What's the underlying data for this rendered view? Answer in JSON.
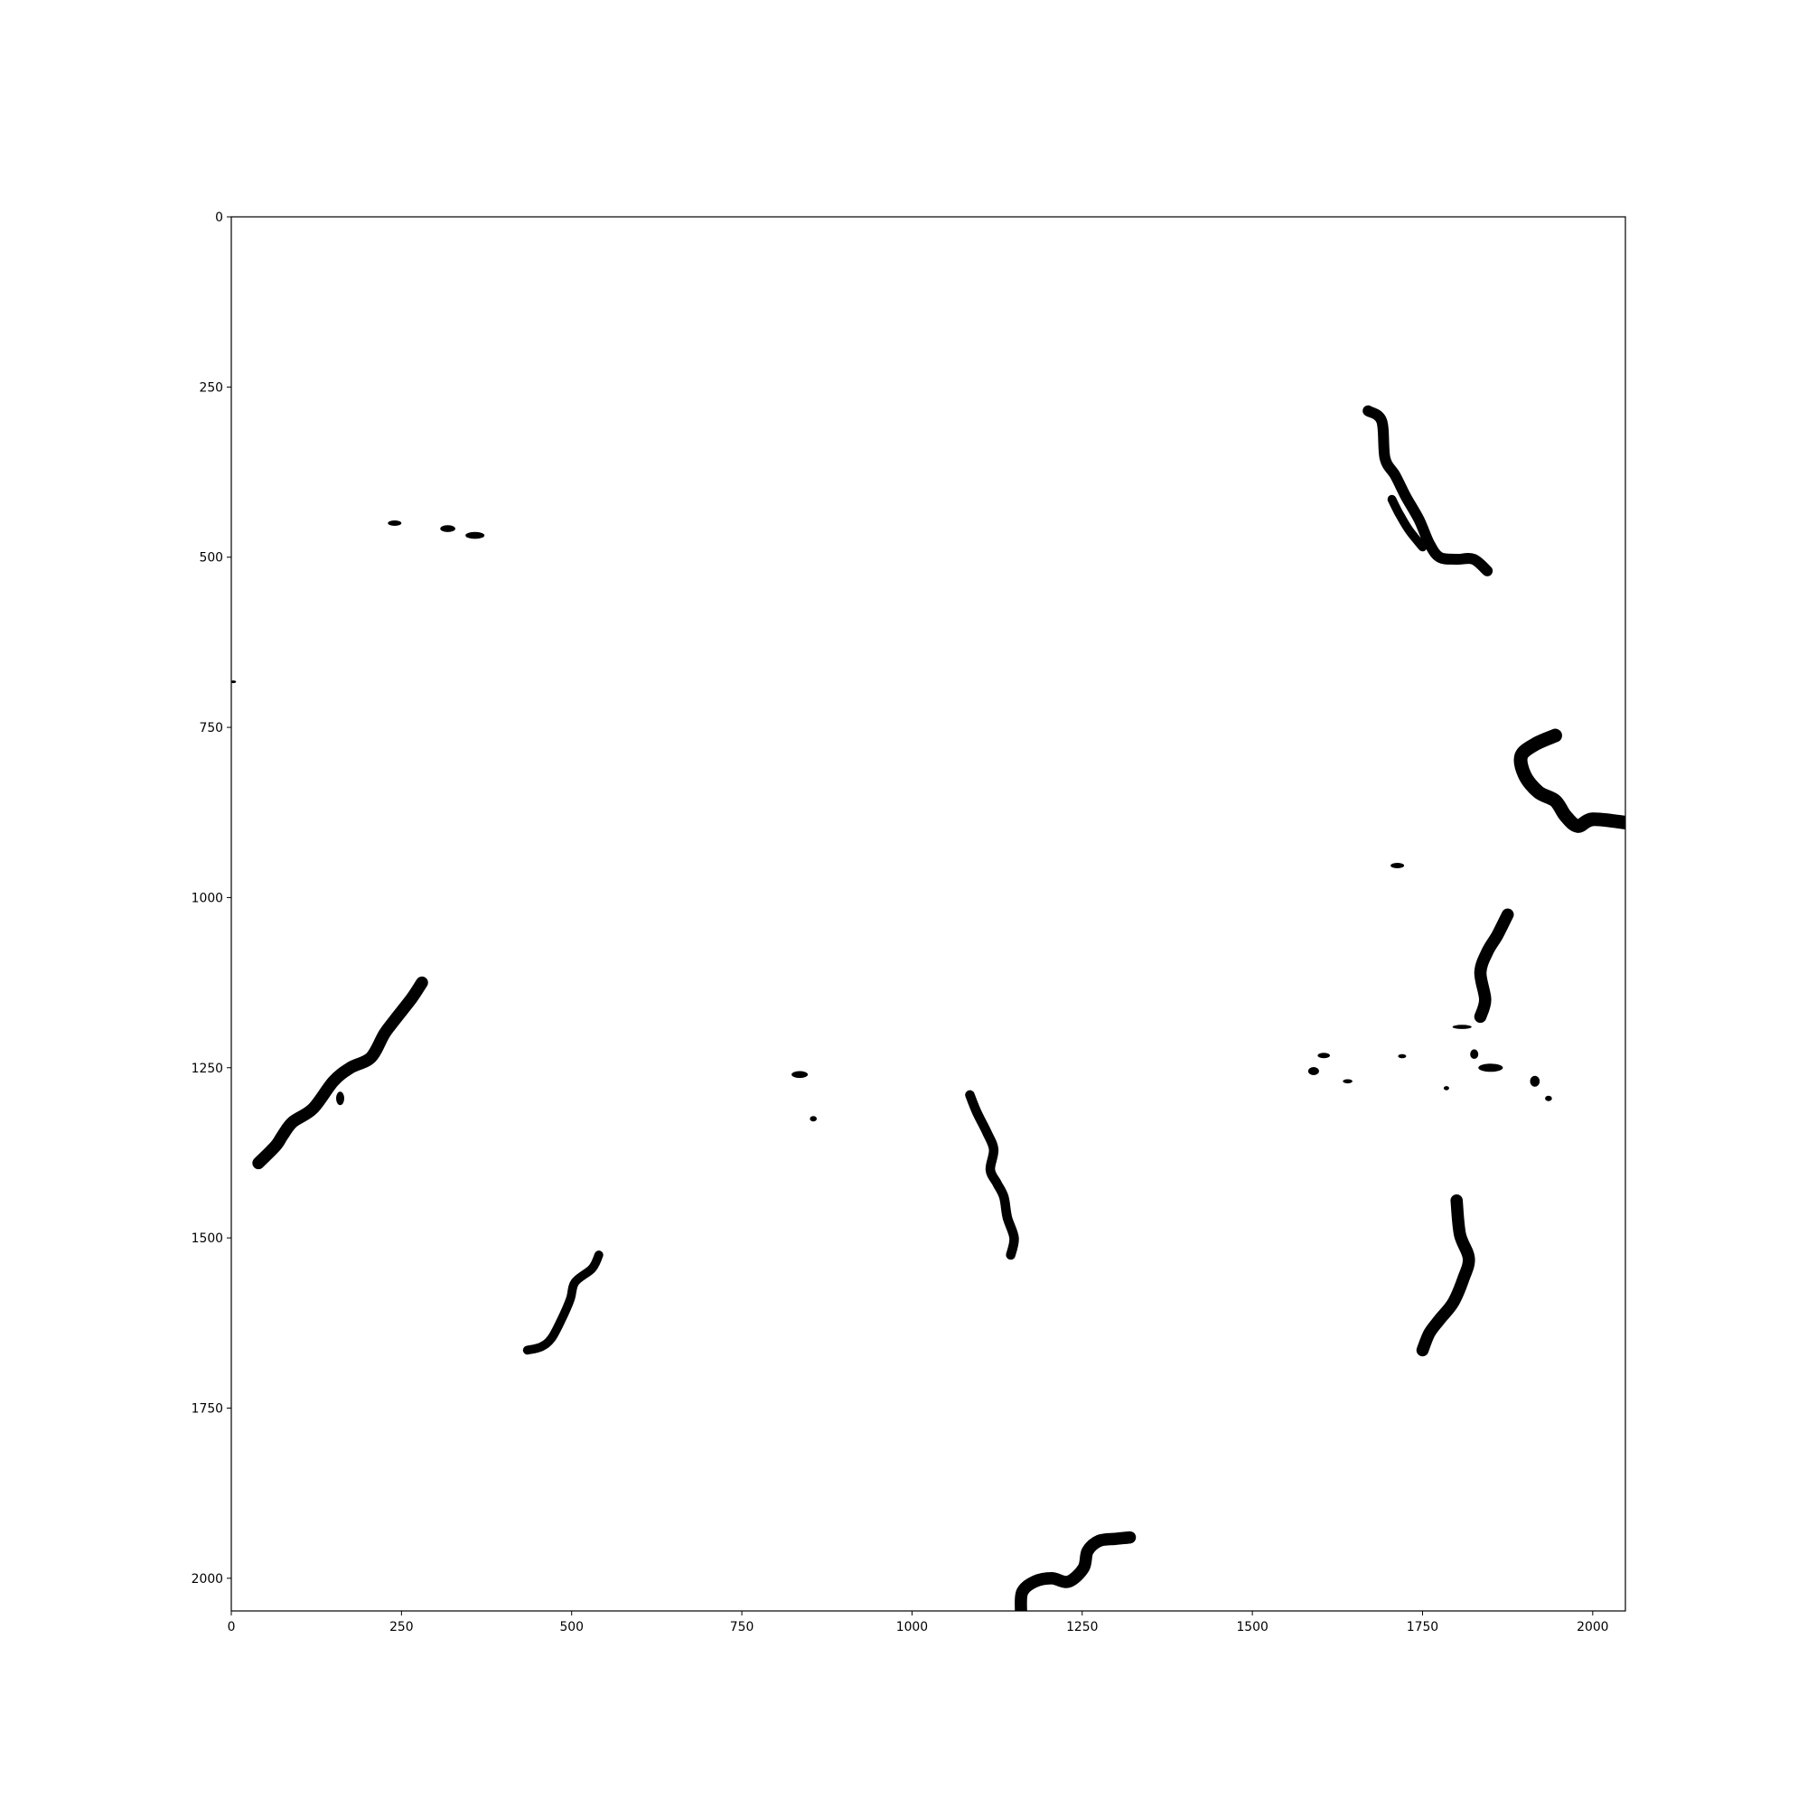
{
  "chart_data": {
    "type": "heatmap",
    "colormap": "gray",
    "foreground_color": "#000000",
    "background_color": "#ffffff",
    "title": "",
    "xlabel": "",
    "ylabel": "",
    "xlim": [
      0,
      2048
    ],
    "ylim": [
      2048,
      0
    ],
    "y_axis_inverted": true,
    "grid": false,
    "x_ticks": [
      0,
      250,
      500,
      750,
      1000,
      1250,
      1500,
      1750,
      2000
    ],
    "x_tick_labels": [
      "0",
      "250",
      "500",
      "750",
      "1000",
      "1250",
      "1500",
      "1750",
      "2000"
    ],
    "y_ticks": [
      0,
      250,
      500,
      750,
      1000,
      1250,
      1500,
      1750,
      2000
    ],
    "y_tick_labels": [
      "0",
      "250",
      "500",
      "750",
      "1000",
      "1250",
      "1500",
      "1750",
      "2000"
    ],
    "segments": [
      {
        "id": "river-top-right",
        "points": [
          [
            1670,
            285
          ],
          [
            1690,
            300
          ],
          [
            1695,
            355
          ],
          [
            1710,
            380
          ],
          [
            1725,
            410
          ],
          [
            1745,
            445
          ],
          [
            1760,
            480
          ],
          [
            1775,
            500
          ],
          [
            1800,
            503
          ],
          [
            1825,
            503
          ],
          [
            1845,
            520
          ]
        ],
        "width": 16
      },
      {
        "id": "branch-top-right",
        "points": [
          [
            1705,
            415
          ],
          [
            1715,
            435
          ],
          [
            1730,
            460
          ],
          [
            1750,
            485
          ]
        ],
        "width": 13
      },
      {
        "id": "river-right-edge",
        "points": [
          [
            1945,
            762
          ],
          [
            1915,
            775
          ],
          [
            1895,
            792
          ],
          [
            1900,
            820
          ],
          [
            1920,
            845
          ],
          [
            1945,
            858
          ],
          [
            1960,
            880
          ],
          [
            1978,
            895
          ],
          [
            2000,
            885
          ],
          [
            2048,
            890
          ]
        ],
        "width": 20
      },
      {
        "id": "river-left-sinuous",
        "points": [
          [
            280,
            1125
          ],
          [
            265,
            1148
          ],
          [
            240,
            1180
          ],
          [
            225,
            1200
          ],
          [
            205,
            1235
          ],
          [
            175,
            1250
          ],
          [
            150,
            1270
          ],
          [
            120,
            1310
          ],
          [
            90,
            1330
          ],
          [
            75,
            1350
          ],
          [
            65,
            1365
          ],
          [
            40,
            1390
          ]
        ],
        "width": 18
      },
      {
        "id": "river-center-vertical",
        "points": [
          [
            1085,
            1290
          ],
          [
            1095,
            1315
          ],
          [
            1110,
            1345
          ],
          [
            1120,
            1370
          ],
          [
            1115,
            1400
          ],
          [
            1125,
            1420
          ],
          [
            1135,
            1440
          ],
          [
            1140,
            1470
          ],
          [
            1150,
            1500
          ],
          [
            1145,
            1525
          ]
        ],
        "width": 14
      },
      {
        "id": "river-right-upper",
        "points": [
          [
            1875,
            1025
          ],
          [
            1860,
            1055
          ],
          [
            1845,
            1080
          ],
          [
            1835,
            1110
          ],
          [
            1842,
            1150
          ],
          [
            1835,
            1175
          ]
        ],
        "width": 18
      },
      {
        "id": "river-right-lower",
        "points": [
          [
            1800,
            1445
          ],
          [
            1805,
            1495
          ],
          [
            1818,
            1530
          ],
          [
            1810,
            1560
          ],
          [
            1795,
            1595
          ],
          [
            1775,
            1620
          ],
          [
            1760,
            1640
          ],
          [
            1750,
            1665
          ]
        ],
        "width": 18
      },
      {
        "id": "river-bottom-center",
        "points": [
          [
            1160,
            2048
          ],
          [
            1162,
            2020
          ],
          [
            1180,
            2005
          ],
          [
            1205,
            2000
          ],
          [
            1230,
            2005
          ],
          [
            1252,
            1985
          ],
          [
            1258,
            1960
          ],
          [
            1275,
            1945
          ],
          [
            1300,
            1942
          ],
          [
            1320,
            1940
          ]
        ],
        "width": 18
      },
      {
        "id": "river-lower-left",
        "points": [
          [
            540,
            1525
          ],
          [
            530,
            1545
          ],
          [
            505,
            1565
          ],
          [
            498,
            1590
          ],
          [
            485,
            1620
          ],
          [
            470,
            1648
          ],
          [
            455,
            1660
          ],
          [
            435,
            1665
          ]
        ],
        "width": 13
      }
    ],
    "blobs": [
      {
        "cx": 240,
        "cy": 450,
        "rx": 10,
        "ry": 4
      },
      {
        "cx": 318,
        "cy": 458,
        "rx": 11,
        "ry": 5
      },
      {
        "cx": 358,
        "cy": 468,
        "rx": 14,
        "ry": 5
      },
      {
        "cx": 3,
        "cy": 683,
        "rx": 4,
        "ry": 2
      },
      {
        "cx": 1713,
        "cy": 953,
        "rx": 10,
        "ry": 4
      },
      {
        "cx": 835,
        "cy": 1260,
        "rx": 12,
        "ry": 5
      },
      {
        "cx": 855,
        "cy": 1325,
        "rx": 5,
        "ry": 4
      },
      {
        "cx": 160,
        "cy": 1295,
        "rx": 6,
        "ry": 10
      },
      {
        "cx": 1590,
        "cy": 1255,
        "rx": 8,
        "ry": 6
      },
      {
        "cx": 1605,
        "cy": 1232,
        "rx": 9,
        "ry": 4
      },
      {
        "cx": 1640,
        "cy": 1270,
        "rx": 7,
        "ry": 3
      },
      {
        "cx": 1720,
        "cy": 1233,
        "rx": 6,
        "ry": 3
      },
      {
        "cx": 1808,
        "cy": 1190,
        "rx": 14,
        "ry": 3
      },
      {
        "cx": 1850,
        "cy": 1250,
        "rx": 18,
        "ry": 6
      },
      {
        "cx": 1826,
        "cy": 1230,
        "rx": 6,
        "ry": 7
      },
      {
        "cx": 1915,
        "cy": 1270,
        "rx": 7,
        "ry": 8
      },
      {
        "cx": 1935,
        "cy": 1295,
        "rx": 5,
        "ry": 4
      },
      {
        "cx": 1785,
        "cy": 1280,
        "rx": 4,
        "ry": 3
      }
    ]
  }
}
